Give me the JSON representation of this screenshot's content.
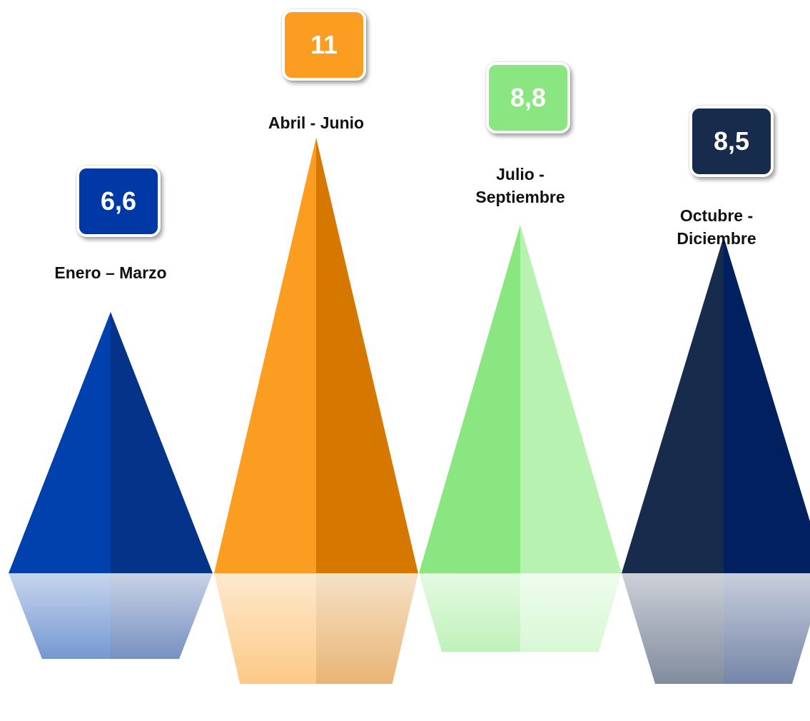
{
  "chart_data": {
    "type": "bar",
    "categories": [
      "Enero – Marzo",
      "Abril - Junio",
      "Julio -\nSeptiembre",
      "Octubre -\nDiciembre"
    ],
    "values": [
      6.6,
      11,
      8.8,
      8.5
    ],
    "value_labels": [
      "6,6",
      "11",
      "8,8",
      "8,5"
    ],
    "colors": [
      {
        "left": "#0041ad",
        "right": "#05338a",
        "box": "#0039a6"
      },
      {
        "left": "#fa9d20",
        "right": "#d67700",
        "box": "#fa9d20"
      },
      {
        "left": "#8ae680",
        "right": "#b7f2b0",
        "box": "#8ae680"
      },
      {
        "left": "#172b4d",
        "right": "#012060",
        "box": "#172b4d"
      }
    ]
  }
}
